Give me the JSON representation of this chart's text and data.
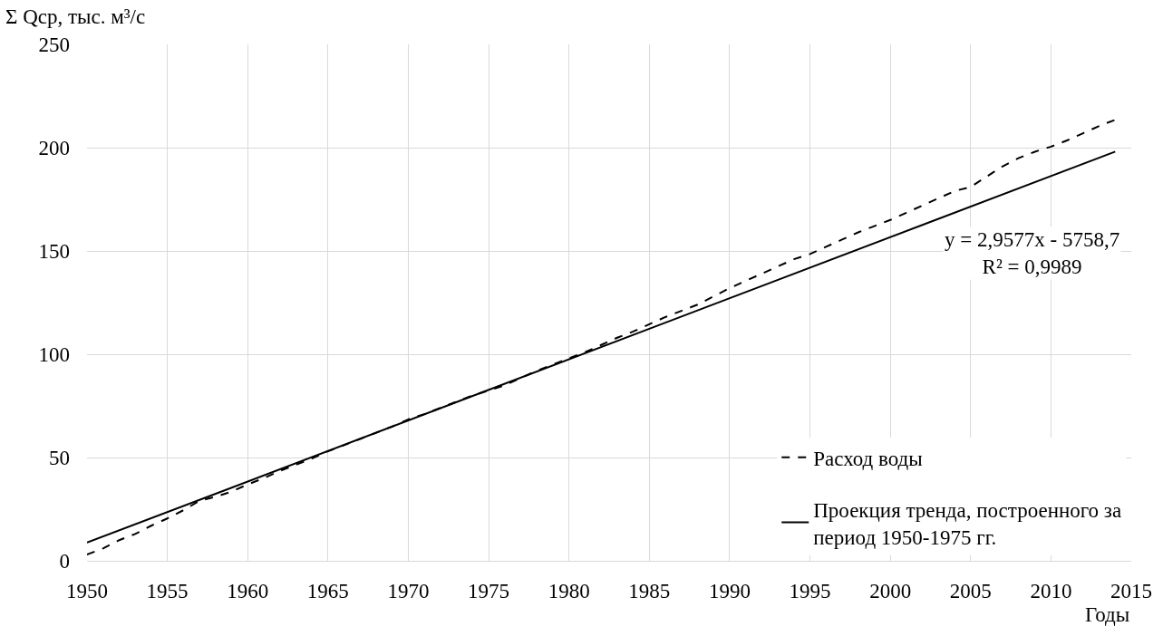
{
  "chart_data": {
    "type": "line",
    "xlabel": "Годы",
    "ylabel": "Σ Qср, тыс. м³/с",
    "x": [
      1950,
      1951,
      1952,
      1953,
      1954,
      1955,
      1956,
      1957,
      1958,
      1959,
      1960,
      1961,
      1962,
      1963,
      1964,
      1965,
      1966,
      1967,
      1968,
      1969,
      1970,
      1971,
      1972,
      1973,
      1974,
      1975,
      1976,
      1977,
      1978,
      1979,
      1980,
      1981,
      1982,
      1983,
      1984,
      1985,
      1986,
      1987,
      1988,
      1989,
      1990,
      1991,
      1992,
      1993,
      1994,
      1995,
      1996,
      1997,
      1998,
      1999,
      2000,
      2001,
      2002,
      2003,
      2004,
      2005,
      2006,
      2007,
      2008,
      2009,
      2010,
      2011,
      2012,
      2013,
      2014
    ],
    "series": [
      {
        "name": "Расход воды",
        "color": "#000000",
        "line_style": "dashed",
        "values": [
          3,
          6,
          10,
          13,
          17,
          20.5,
          24.5,
          29,
          31,
          33.5,
          37,
          40,
          43.5,
          46.5,
          49.5,
          53,
          56,
          59,
          62,
          65,
          68.5,
          71,
          74,
          77,
          80,
          82.5,
          85,
          88.5,
          92,
          95,
          98,
          101,
          104.5,
          108,
          111,
          114.5,
          118,
          121,
          124,
          128,
          132,
          135.5,
          139,
          142.5,
          146,
          148.5,
          152,
          155.5,
          159,
          162,
          165,
          168.5,
          172,
          175.5,
          179,
          181,
          186,
          191,
          195,
          198,
          200.5,
          203.5,
          207,
          210.5,
          213.5
        ]
      },
      {
        "name": "Проекция тренда, построенного за период 1950-1975 гг.",
        "color": "#000000",
        "line_style": "solid",
        "type": "line",
        "x": [
          1950,
          2014
        ],
        "values": [
          8.8,
          198.1
        ]
      }
    ],
    "xlim": [
      1950,
      2015
    ],
    "ylim": [
      0,
      250
    ],
    "xticks": [
      1950,
      1955,
      1960,
      1965,
      1970,
      1975,
      1980,
      1985,
      1990,
      1995,
      2000,
      2005,
      2010,
      2015
    ],
    "yticks": [
      0,
      50,
      100,
      150,
      200,
      250
    ],
    "annotations": [
      "y = 2,9577x - 5758,7\nR² = 0,9989"
    ],
    "grid": true,
    "legend": "bottom right"
  }
}
